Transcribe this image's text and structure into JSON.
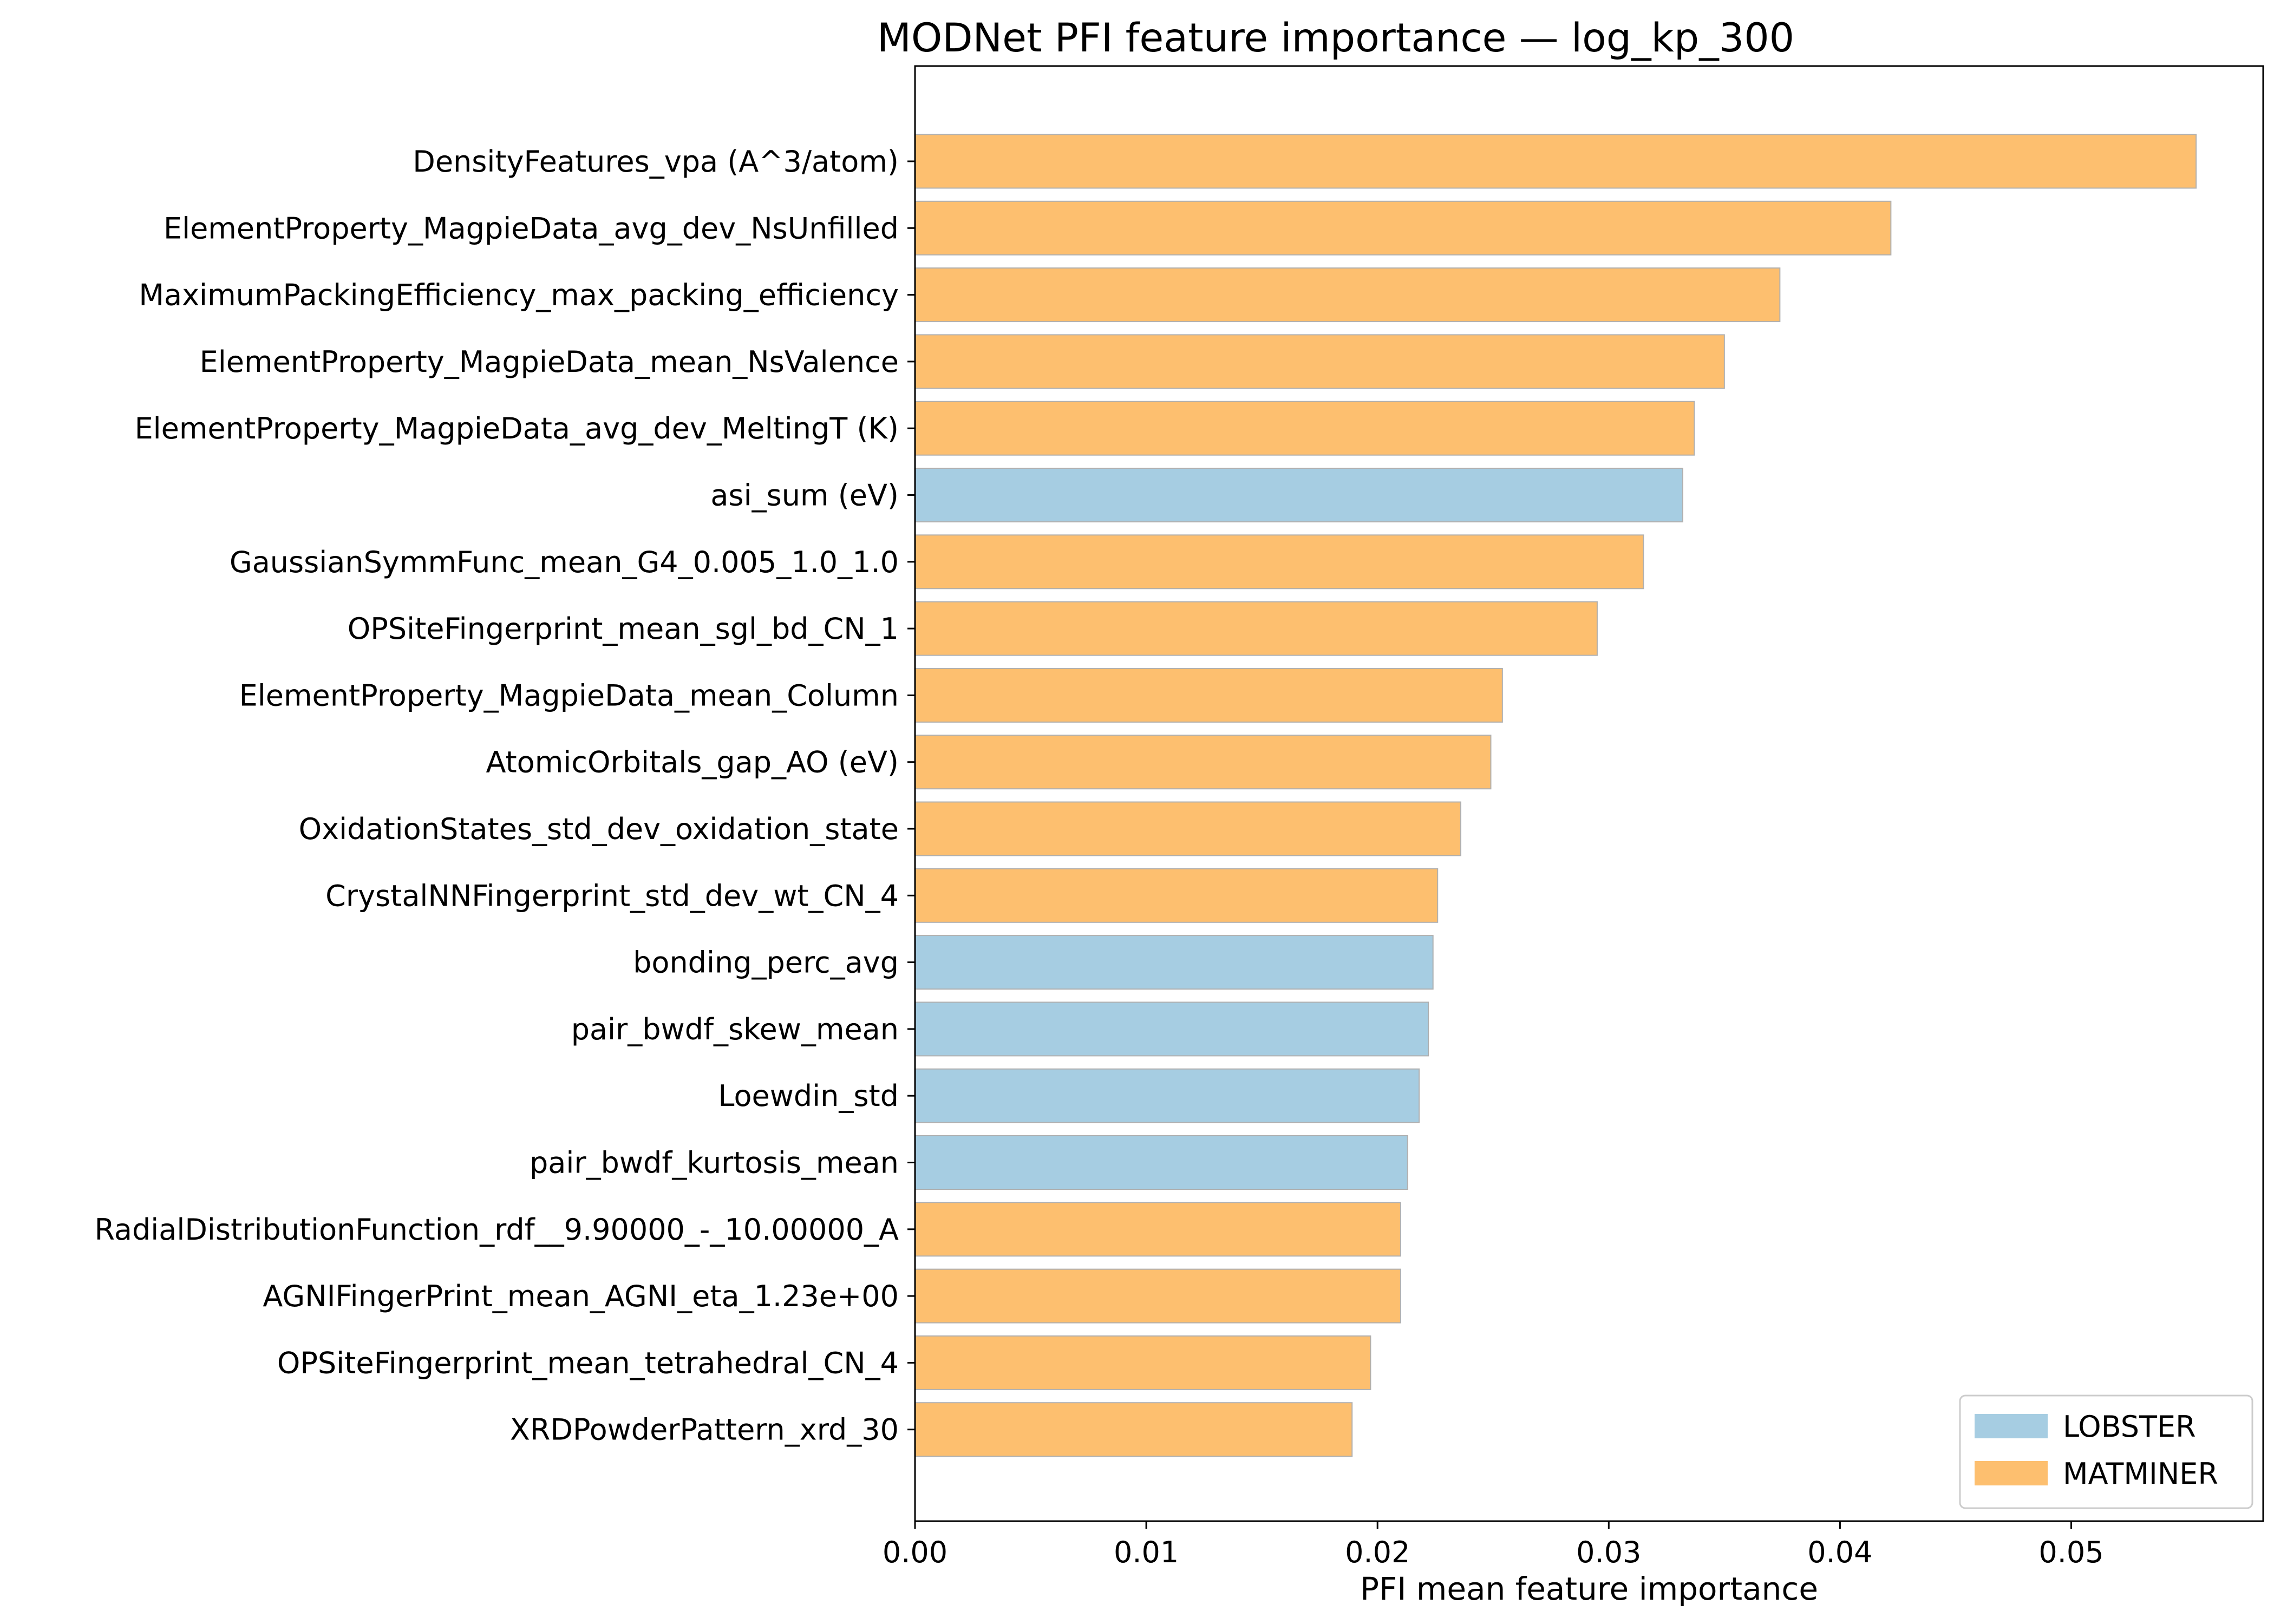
{
  "chart_data": {
    "type": "bar",
    "orientation": "horizontal",
    "title": "MODNet PFI feature importance — log_kp_300",
    "xlabel": "PFI mean feature importance",
    "ylabel": "",
    "xlim": [
      0,
      0.0583
    ],
    "x_ticks": [
      0.0,
      0.01,
      0.02,
      0.03,
      0.04,
      0.05
    ],
    "x_tick_labels": [
      "0.00",
      "0.01",
      "0.02",
      "0.03",
      "0.04",
      "0.05"
    ],
    "grid": false,
    "legend": {
      "position": "lower right",
      "entries": [
        {
          "name": "LOBSTER",
          "color": "#a6cde2"
        },
        {
          "name": "MATMINER",
          "color": "#fdbf6f"
        }
      ]
    },
    "colors": {
      "LOBSTER": "#a6cde2",
      "MATMINER": "#fdbf6f",
      "bar_edge": "#b0b0b0"
    },
    "bars": [
      {
        "label": "DensityFeatures_vpa (A^3/atom)",
        "value": 0.0554,
        "group": "MATMINER"
      },
      {
        "label": "ElementProperty_MagpieData_avg_dev_NsUnfilled",
        "value": 0.0422,
        "group": "MATMINER"
      },
      {
        "label": "MaximumPackingEfficiency_max_packing_efficiency",
        "value": 0.0374,
        "group": "MATMINER"
      },
      {
        "label": "ElementProperty_MagpieData_mean_NsValence",
        "value": 0.035,
        "group": "MATMINER"
      },
      {
        "label": "ElementProperty_MagpieData_avg_dev_MeltingT (K)",
        "value": 0.0337,
        "group": "MATMINER"
      },
      {
        "label": "asi_sum (eV)",
        "value": 0.0332,
        "group": "LOBSTER"
      },
      {
        "label": "GaussianSymmFunc_mean_G4_0.005_1.0_1.0",
        "value": 0.0315,
        "group": "MATMINER"
      },
      {
        "label": "OPSiteFingerprint_mean_sgl_bd_CN_1",
        "value": 0.0295,
        "group": "MATMINER"
      },
      {
        "label": "ElementProperty_MagpieData_mean_Column",
        "value": 0.0254,
        "group": "MATMINER"
      },
      {
        "label": "AtomicOrbitals_gap_AO (eV)",
        "value": 0.0249,
        "group": "MATMINER"
      },
      {
        "label": "OxidationStates_std_dev_oxidation_state",
        "value": 0.0236,
        "group": "MATMINER"
      },
      {
        "label": "CrystalNNFingerprint_std_dev_wt_CN_4",
        "value": 0.0226,
        "group": "MATMINER"
      },
      {
        "label": "bonding_perc_avg",
        "value": 0.0224,
        "group": "LOBSTER"
      },
      {
        "label": "pair_bwdf_skew_mean",
        "value": 0.0222,
        "group": "LOBSTER"
      },
      {
        "label": "Loewdin_std",
        "value": 0.0218,
        "group": "LOBSTER"
      },
      {
        "label": "pair_bwdf_kurtosis_mean",
        "value": 0.0213,
        "group": "LOBSTER"
      },
      {
        "label": "RadialDistributionFunction_rdf__9.90000_-_10.00000_A",
        "value": 0.021,
        "group": "MATMINER"
      },
      {
        "label": "AGNIFingerPrint_mean_AGNI_eta_1.23e+00",
        "value": 0.021,
        "group": "MATMINER"
      },
      {
        "label": "OPSiteFingerprint_mean_tetrahedral_CN_4",
        "value": 0.0197,
        "group": "MATMINER"
      },
      {
        "label": "XRDPowderPattern_xrd_30",
        "value": 0.0189,
        "group": "MATMINER"
      }
    ]
  }
}
